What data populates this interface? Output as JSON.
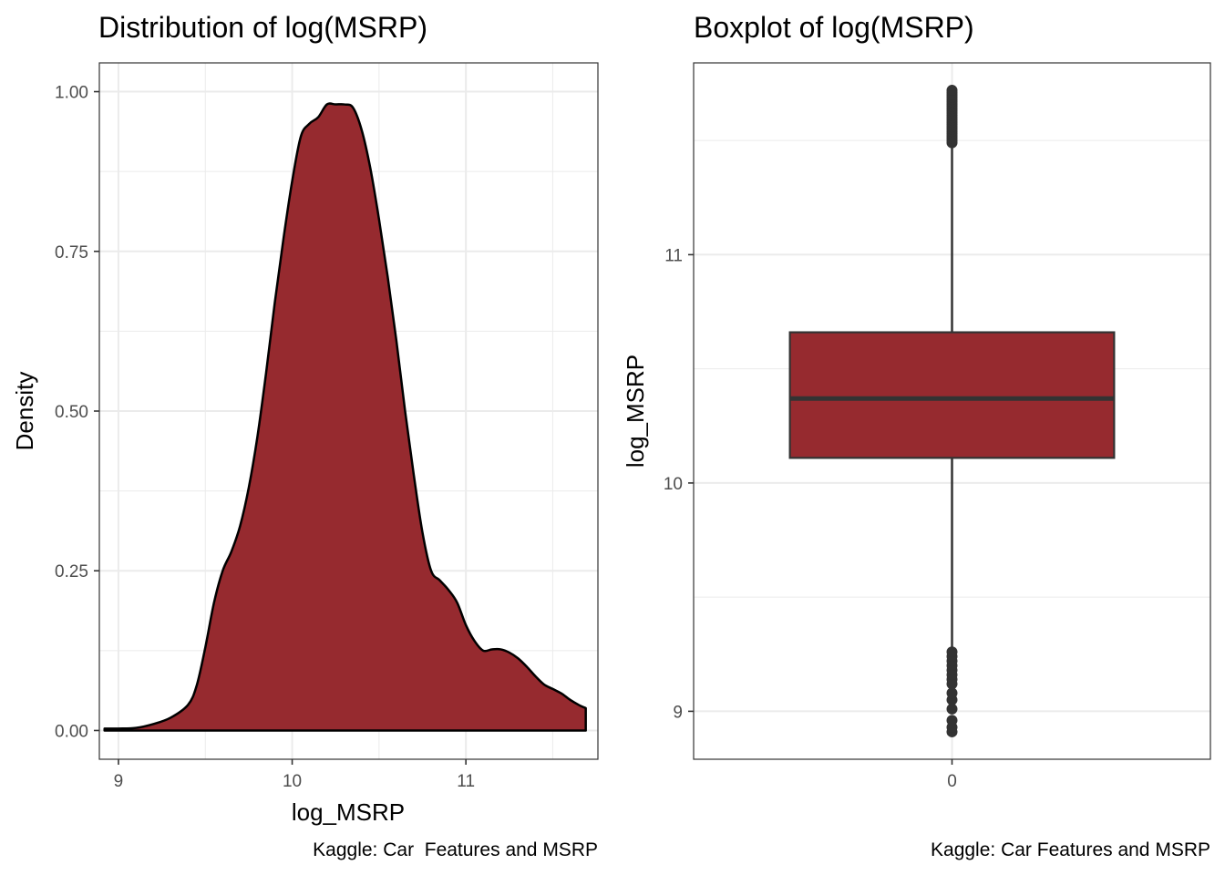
{
  "chart_data": [
    {
      "type": "area",
      "title": "Distribution of log(MSRP)",
      "xlabel": "log_MSRP",
      "ylabel": "Density",
      "caption": "Kaggle: Car  Features and MSRP",
      "xlim": [
        8.89,
        11.76
      ],
      "ylim": [
        -0.045,
        1.045
      ],
      "x_ticks": [
        9,
        10,
        11
      ],
      "x_tick_labels": [
        "9",
        "10",
        "11"
      ],
      "y_ticks": [
        0,
        0.25,
        0.5,
        0.75,
        1.0
      ],
      "y_tick_labels": [
        "0.00",
        "0.25",
        "0.50",
        "0.75",
        "1.00"
      ],
      "grid": true,
      "fill_color": "#962a2f",
      "line_color": "#000000",
      "series": [
        {
          "x": [
            8.92,
            9.0,
            9.1,
            9.2,
            9.3,
            9.4,
            9.45,
            9.5,
            9.55,
            9.6,
            9.65,
            9.7,
            9.75,
            9.8,
            9.85,
            9.9,
            9.95,
            10.0,
            10.05,
            10.1,
            10.15,
            10.2,
            10.25,
            10.3,
            10.35,
            10.4,
            10.45,
            10.5,
            10.55,
            10.6,
            10.65,
            10.7,
            10.75,
            10.8,
            10.85,
            10.9,
            10.95,
            11.0,
            11.05,
            11.1,
            11.15,
            11.2,
            11.25,
            11.3,
            11.35,
            11.4,
            11.45,
            11.5,
            11.55,
            11.6,
            11.65,
            11.69
          ],
          "y": [
            0.003,
            0.003,
            0.004,
            0.01,
            0.02,
            0.04,
            0.07,
            0.13,
            0.2,
            0.25,
            0.28,
            0.32,
            0.38,
            0.46,
            0.56,
            0.67,
            0.77,
            0.86,
            0.93,
            0.95,
            0.96,
            0.98,
            0.98,
            0.98,
            0.975,
            0.94,
            0.88,
            0.8,
            0.71,
            0.61,
            0.5,
            0.4,
            0.31,
            0.25,
            0.235,
            0.22,
            0.2,
            0.165,
            0.14,
            0.125,
            0.127,
            0.127,
            0.122,
            0.113,
            0.1,
            0.085,
            0.072,
            0.065,
            0.058,
            0.048,
            0.04,
            0.035
          ]
        }
      ]
    },
    {
      "type": "box",
      "title": "Boxplot of log(MSRP)",
      "xlabel": "",
      "ylabel": "log_MSRP",
      "caption": "Kaggle: Car Features and MSRP",
      "categories": [
        "0"
      ],
      "ylim": [
        8.79,
        11.84
      ],
      "y_ticks": [
        9,
        10,
        11
      ],
      "y_tick_labels": [
        "9",
        "10",
        "11"
      ],
      "grid": true,
      "fill_color": "#962a2f",
      "line_color": "#333333",
      "box": {
        "q1": 10.11,
        "median": 10.37,
        "q3": 10.66,
        "whisker_low": 9.28,
        "whisker_high": 11.49
      },
      "outliers": [
        8.91,
        8.93,
        8.96,
        9.01,
        9.05,
        9.08,
        9.12,
        9.14,
        9.16,
        9.18,
        9.2,
        9.22,
        9.24,
        9.26,
        11.49,
        11.5,
        11.51,
        11.52,
        11.53,
        11.54,
        11.55,
        11.56,
        11.57,
        11.58,
        11.59,
        11.6,
        11.61,
        11.62,
        11.63,
        11.64,
        11.65,
        11.66,
        11.67,
        11.68,
        11.69,
        11.7,
        11.71,
        11.72
      ]
    }
  ]
}
